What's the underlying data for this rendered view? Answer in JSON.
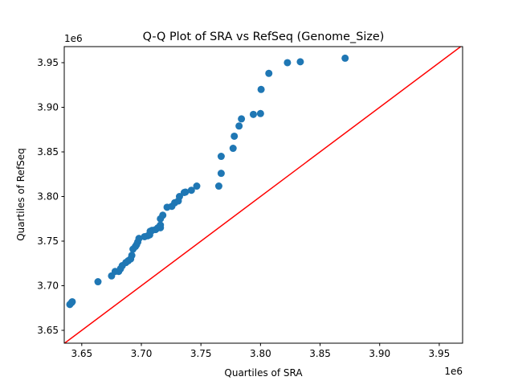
{
  "chart_data": {
    "type": "scatter",
    "title": "Q-Q Plot of SRA vs RefSeq (Genome_Size)",
    "xlabel": "Quartiles of SRA",
    "ylabel": "Quartiles of RefSeq",
    "x_offset_label": "1e6",
    "y_offset_label": "1e6",
    "xlim": [
      3.6353,
      3.9696
    ],
    "ylim": [
      3.6356,
      3.968
    ],
    "xticks": [
      3.65,
      3.7,
      3.75,
      3.8,
      3.85,
      3.9,
      3.95
    ],
    "xtick_labels": [
      "3.65",
      "3.70",
      "3.75",
      "3.80",
      "3.85",
      "3.90",
      "3.95"
    ],
    "yticks": [
      3.65,
      3.7,
      3.75,
      3.8,
      3.85,
      3.9,
      3.95
    ],
    "ytick_labels": [
      "3.65",
      "3.70",
      "3.75",
      "3.80",
      "3.85",
      "3.90",
      "3.95"
    ],
    "grid": false,
    "point_color": "#1f77b4",
    "reference_line": {
      "type": "y=x",
      "color": "#ff0000"
    },
    "points": [
      [
        3.64,
        3.679
      ],
      [
        3.6414,
        3.681
      ],
      [
        3.642,
        3.682
      ],
      [
        3.6636,
        3.7045
      ],
      [
        3.675,
        3.711
      ],
      [
        3.678,
        3.716
      ],
      [
        3.681,
        3.716
      ],
      [
        3.6825,
        3.719
      ],
      [
        3.684,
        3.7225
      ],
      [
        3.687,
        3.726
      ],
      [
        3.689,
        3.728
      ],
      [
        3.691,
        3.73
      ],
      [
        3.692,
        3.734
      ],
      [
        3.693,
        3.741
      ],
      [
        3.695,
        3.744
      ],
      [
        3.696,
        3.746
      ],
      [
        3.697,
        3.749
      ],
      [
        3.698,
        3.753
      ],
      [
        3.7027,
        3.755
      ],
      [
        3.7054,
        3.756
      ],
      [
        3.707,
        3.757
      ],
      [
        3.7074,
        3.761
      ],
      [
        3.709,
        3.762
      ],
      [
        3.712,
        3.763
      ],
      [
        3.714,
        3.765
      ],
      [
        3.716,
        3.765
      ],
      [
        3.716,
        3.768
      ],
      [
        3.716,
        3.775
      ],
      [
        3.718,
        3.779
      ],
      [
        3.7216,
        3.788
      ],
      [
        3.7256,
        3.789
      ],
      [
        3.728,
        3.793
      ],
      [
        3.731,
        3.795
      ],
      [
        3.732,
        3.8
      ],
      [
        3.736,
        3.8045
      ],
      [
        3.737,
        3.805
      ],
      [
        3.742,
        3.807
      ],
      [
        3.7465,
        3.8117
      ],
      [
        3.765,
        3.8117
      ],
      [
        3.767,
        3.826
      ],
      [
        3.767,
        3.845
      ],
      [
        3.777,
        3.854
      ],
      [
        3.778,
        3.8676
      ],
      [
        3.782,
        3.879
      ],
      [
        3.784,
        3.887
      ],
      [
        3.794,
        3.892
      ],
      [
        3.8,
        3.893
      ],
      [
        3.8005,
        3.92
      ],
      [
        3.807,
        3.938
      ],
      [
        3.8226,
        3.95
      ],
      [
        3.8334,
        3.951
      ],
      [
        3.871,
        3.955
      ]
    ]
  }
}
